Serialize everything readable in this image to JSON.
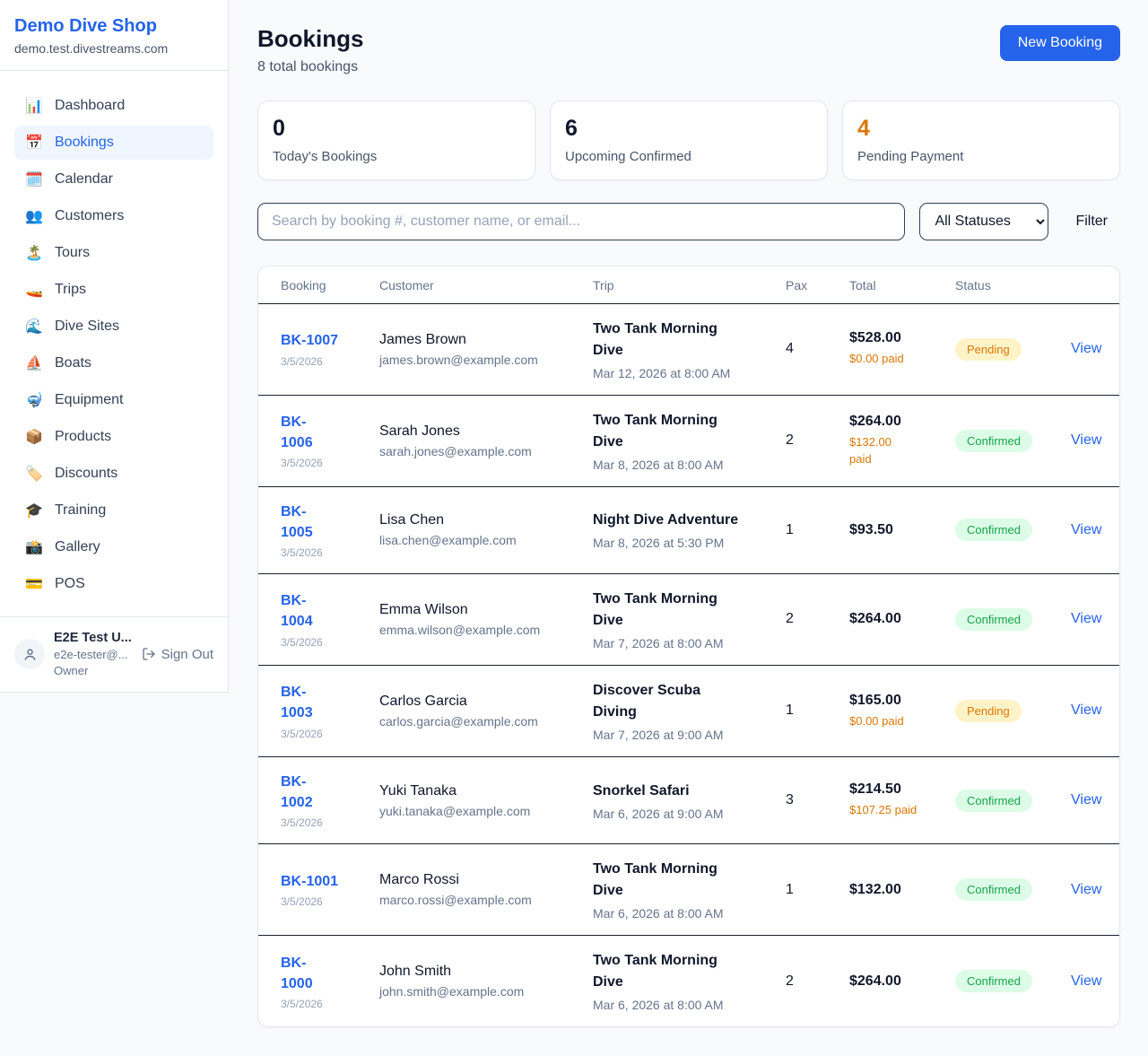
{
  "colors": {
    "accent": "#2563eb",
    "pending_text": "#d97706",
    "pending_bg": "#fef3c7",
    "confirmed_text": "#16a34a",
    "confirmed_bg": "#dcfce7",
    "paid_orange": "#d97706"
  },
  "sidebar": {
    "brand": {
      "name": "Demo Dive Shop",
      "domain": "demo.test.divestreams.com"
    },
    "nav": [
      {
        "slug": "dashboard",
        "icon_name": "dashboard-chart-icon",
        "icon": "📊",
        "label": "Dashboard",
        "active": false
      },
      {
        "slug": "bookings",
        "icon_name": "bookings-calendar-icon",
        "icon": "📅",
        "label": "Bookings",
        "active": true
      },
      {
        "slug": "calendar",
        "icon_name": "calendar-pad-icon",
        "icon": "🗓️",
        "label": "Calendar",
        "active": false
      },
      {
        "slug": "customers",
        "icon_name": "customers-people-icon",
        "icon": "👥",
        "label": "Customers",
        "active": false
      },
      {
        "slug": "tours",
        "icon_name": "tours-island-icon",
        "icon": "🏝️",
        "label": "Tours",
        "active": false
      },
      {
        "slug": "trips",
        "icon_name": "trips-speedboat-icon",
        "icon": "🚤",
        "label": "Trips",
        "active": false
      },
      {
        "slug": "dive-sites",
        "icon_name": "dive-sites-wave-icon",
        "icon": "🌊",
        "label": "Dive Sites",
        "active": false
      },
      {
        "slug": "boats",
        "icon_name": "boats-sailboat-icon",
        "icon": "⛵",
        "label": "Boats",
        "active": false
      },
      {
        "slug": "equipment",
        "icon_name": "equipment-mask-icon",
        "icon": "🤿",
        "label": "Equipment",
        "active": false
      },
      {
        "slug": "products",
        "icon_name": "products-package-icon",
        "icon": "📦",
        "label": "Products",
        "active": false
      },
      {
        "slug": "discounts",
        "icon_name": "discounts-tag-icon",
        "icon": "🏷️",
        "label": "Discounts",
        "active": false
      },
      {
        "slug": "training",
        "icon_name": "training-grad-cap-icon",
        "icon": "🎓",
        "label": "Training",
        "active": false
      },
      {
        "slug": "gallery",
        "icon_name": "gallery-camera-icon",
        "icon": "📸",
        "label": "Gallery",
        "active": false
      },
      {
        "slug": "pos",
        "icon_name": "pos-credit-card-icon",
        "icon": "💳",
        "label": "POS",
        "active": false
      }
    ],
    "user": {
      "name": "E2E Test U...",
      "email": "e2e-tester@...",
      "role": "Owner",
      "sign_out_label": "Sign Out"
    }
  },
  "header": {
    "title": "Bookings",
    "subtitle": "8 total bookings",
    "new_booking_label": "New Booking"
  },
  "stats": [
    {
      "value": "0",
      "label": "Today's Bookings",
      "value_color": "#0f172a"
    },
    {
      "value": "6",
      "label": "Upcoming Confirmed",
      "value_color": "#0f172a"
    },
    {
      "value": "4",
      "label": "Pending Payment",
      "value_color": "#d97706"
    }
  ],
  "filters": {
    "search_placeholder": "Search by booking #, customer name, or email...",
    "status_selected": "All Statuses",
    "filter_label": "Filter"
  },
  "table": {
    "columns": [
      "Booking",
      "Customer",
      "Trip",
      "Pax",
      "Total",
      "Status",
      ""
    ],
    "rows": [
      {
        "id": "BK-1007",
        "id_display": "BK-1007",
        "date": "3/5/2026",
        "customer": "James Brown",
        "email": "james.brown@example.com",
        "trip": "Two Tank Morning Dive",
        "trip_display": "Two Tank Morning\nDive",
        "trip_time": "Mar 12, 2026 at 8:00 AM",
        "pax": "4",
        "total": "$528.00",
        "paid": "$0.00 paid",
        "status": "Pending",
        "status_type": "pending",
        "view": "View"
      },
      {
        "id": "BK-1006",
        "id_display": "BK-\n1006",
        "date": "3/5/2026",
        "customer": "Sarah Jones",
        "email": "sarah.jones@example.com",
        "trip": "Two Tank Morning Dive",
        "trip_display": "Two Tank Morning\nDive",
        "trip_time": "Mar 8, 2026 at 8:00 AM",
        "pax": "2",
        "total": "$264.00",
        "paid": "$132.00\npaid",
        "status": "Confirmed",
        "status_type": "confirmed",
        "view": "View"
      },
      {
        "id": "BK-1005",
        "id_display": "BK-\n1005",
        "date": "3/5/2026",
        "customer": "Lisa Chen",
        "email": "lisa.chen@example.com",
        "trip": "Night Dive Adventure",
        "trip_display": "Night Dive Adventure",
        "trip_time": "Mar 8, 2026 at 5:30 PM",
        "pax": "1",
        "total": "$93.50",
        "paid": "",
        "status": "Confirmed",
        "status_type": "confirmed",
        "view": "View"
      },
      {
        "id": "BK-1004",
        "id_display": "BK-\n1004",
        "date": "3/5/2026",
        "customer": "Emma Wilson",
        "email": "emma.wilson@example.com",
        "trip": "Two Tank Morning Dive",
        "trip_display": "Two Tank Morning\nDive",
        "trip_time": "Mar 7, 2026 at 8:00 AM",
        "pax": "2",
        "total": "$264.00",
        "paid": "",
        "status": "Confirmed",
        "status_type": "confirmed",
        "view": "View"
      },
      {
        "id": "BK-1003",
        "id_display": "BK-\n1003",
        "date": "3/5/2026",
        "customer": "Carlos Garcia",
        "email": "carlos.garcia@example.com",
        "trip": "Discover Scuba Diving",
        "trip_display": "Discover Scuba\nDiving",
        "trip_time": "Mar 7, 2026 at 9:00 AM",
        "pax": "1",
        "total": "$165.00",
        "paid": "$0.00 paid",
        "status": "Pending",
        "status_type": "pending",
        "view": "View"
      },
      {
        "id": "BK-1002",
        "id_display": "BK-\n1002",
        "date": "3/5/2026",
        "customer": "Yuki Tanaka",
        "email": "yuki.tanaka@example.com",
        "trip": "Snorkel Safari",
        "trip_display": "Snorkel Safari",
        "trip_time": "Mar 6, 2026 at 9:00 AM",
        "pax": "3",
        "total": "$214.50",
        "paid": "$107.25 paid",
        "status": "Confirmed",
        "status_type": "confirmed",
        "view": "View"
      },
      {
        "id": "BK-1001",
        "id_display": "BK-1001",
        "date": "3/5/2026",
        "customer": "Marco Rossi",
        "email": "marco.rossi@example.com",
        "trip": "Two Tank Morning Dive",
        "trip_display": "Two Tank Morning\nDive",
        "trip_time": "Mar 6, 2026 at 8:00 AM",
        "pax": "1",
        "total": "$132.00",
        "paid": "",
        "status": "Confirmed",
        "status_type": "confirmed",
        "view": "View"
      },
      {
        "id": "BK-1000",
        "id_display": "BK-\n1000",
        "date": "3/5/2026",
        "customer": "John Smith",
        "email": "john.smith@example.com",
        "trip": "Two Tank Morning Dive",
        "trip_display": "Two Tank Morning\nDive",
        "trip_time": "Mar 6, 2026 at 8:00 AM",
        "pax": "2",
        "total": "$264.00",
        "paid": "",
        "status": "Confirmed",
        "status_type": "confirmed",
        "view": "View"
      }
    ]
  }
}
